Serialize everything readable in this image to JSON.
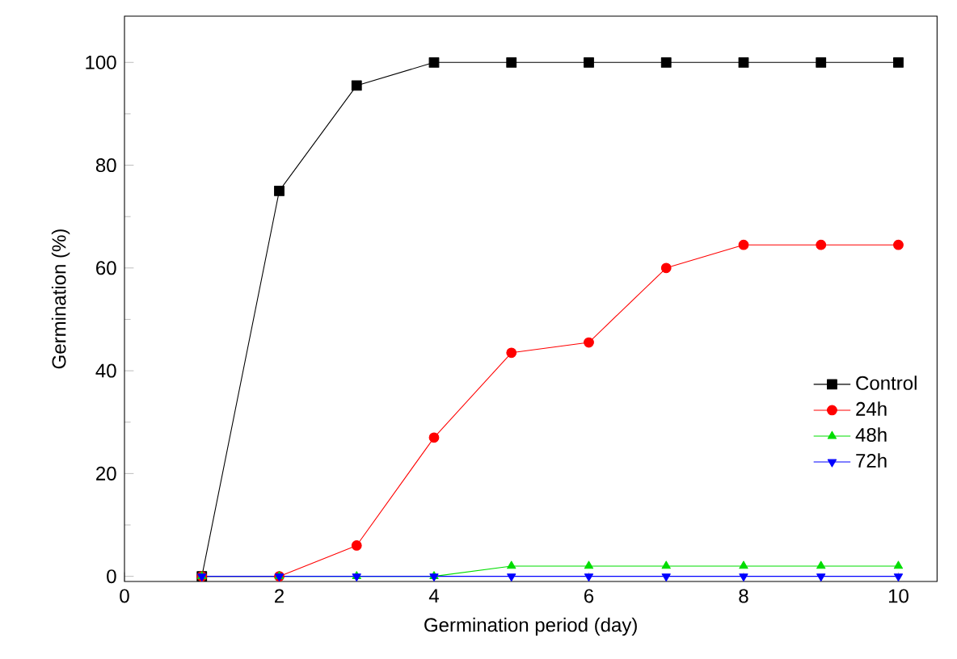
{
  "chart_data": {
    "type": "line",
    "xlabel": "Germination period (day)",
    "ylabel": "Germination (%)",
    "x": [
      1,
      2,
      3,
      4,
      5,
      6,
      7,
      8,
      9,
      10
    ],
    "series": [
      {
        "name": "Control",
        "color": "#000000",
        "marker": "square",
        "values": [
          0,
          75,
          95.5,
          100,
          100,
          100,
          100,
          100,
          100,
          100
        ]
      },
      {
        "name": "24h",
        "color": "#ff0000",
        "marker": "circle",
        "values": [
          0,
          0,
          6,
          27,
          43.5,
          45.5,
          60,
          64.5,
          64.5,
          64.5
        ]
      },
      {
        "name": "48h",
        "color": "#00dd00",
        "marker": "triangle",
        "values": [
          0,
          0,
          0,
          0,
          2,
          2,
          2,
          2,
          2,
          2
        ]
      },
      {
        "name": "72h",
        "color": "#0000ff",
        "marker": "triangle down",
        "values": [
          0,
          0,
          0,
          0,
          0,
          0,
          0,
          0,
          0,
          0
        ]
      }
    ],
    "xlim": [
      0,
      10.5
    ],
    "xticks": [
      0,
      2,
      4,
      6,
      8,
      10
    ],
    "ylim": [
      -1,
      109
    ],
    "yticks": [
      0,
      20,
      40,
      60,
      80,
      100
    ],
    "grid": false,
    "legend": "right",
    "line_style": "solid"
  }
}
